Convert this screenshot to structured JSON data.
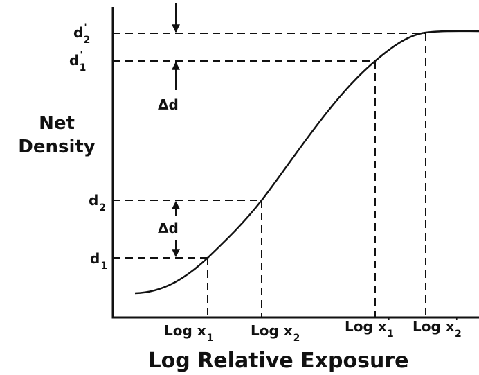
{
  "axis": {
    "y_label_lines": [
      "Net",
      "Density"
    ],
    "x_label": "Log Relative Exposure"
  },
  "y_labels": [
    {
      "main": "d",
      "sub": "2",
      "sup": "'"
    },
    {
      "main": "d",
      "sub": "1",
      "sup": "'"
    },
    {
      "main": "d",
      "sub": "2"
    },
    {
      "main": "d",
      "sub": "1"
    }
  ],
  "x_labels": [
    {
      "main": "Log x",
      "sub": "1"
    },
    {
      "main": "Log x",
      "sub": "2"
    },
    {
      "main": "Log x",
      "sub": "1",
      "sup": "'"
    },
    {
      "main": "Log x",
      "sub": "2",
      "sup": "'"
    }
  ],
  "annotations": [
    "Δd",
    "Δd"
  ]
}
